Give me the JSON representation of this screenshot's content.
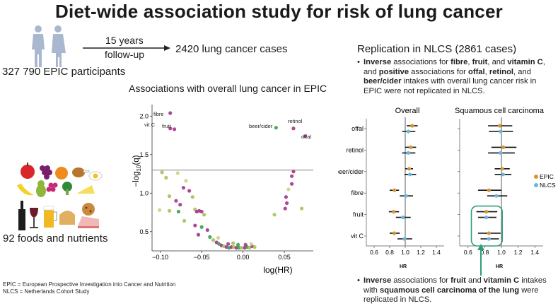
{
  "title": "Diet-wide association study for risk of lung cancer",
  "cohort": {
    "participants": "327 790 EPIC participants",
    "followup_years": "15 years",
    "followup_word": "follow-up",
    "cases": "2420 lung cancer cases",
    "foods": "92 foods and nutrients"
  },
  "volcano": {
    "title": "Associations with overall lung cancer in EPIC",
    "xlabel": "log(HR)",
    "ylabel_main": "−log",
    "ylabel_sub": "10",
    "ylabel_q": "(q)",
    "labels": [
      "fibre",
      "vit C",
      "fruit",
      "beer/cider",
      "retinol",
      "offal"
    ]
  },
  "replication": {
    "title": "Replication in NLCS (2861 cases)",
    "bullet1": {
      "p1_b": "Inverse",
      "p1": " associations for ",
      "p2_b": "fibre",
      "p3": ", ",
      "p4_b": "fruit",
      "p5": ", and ",
      "p6_b": "vitamin C",
      "p7": ",",
      "l2_a": "and ",
      "l2_b": "positive",
      "l2_c": " associations for ",
      "l2_d": "offal",
      "l2_e": ", ",
      "l2_f": "retinol",
      "l2_g": ", and",
      "l3_b": "beer/cider",
      "l3": " intakes with overall lung cancer risk in",
      "l4": "EPIC were not replicated in NLCS."
    },
    "bullet2": {
      "l1_b": "Inverse",
      "l1": " associations for ",
      "l1_c": "fruit",
      "l1_d": " and ",
      "l1_e": "vitamin C",
      "l1_f": " intakes",
      "l2": "with ",
      "l2_b": "squamous cell carcinoma of the lung",
      "l2_c": " were",
      "l3": "replicated in NLCS."
    }
  },
  "forest": {
    "panel_overall": "Overall",
    "panel_scc": "Squamous cell carcinoma",
    "axis_label": "HR",
    "ticks": [
      "0.6",
      "0.8",
      "1.0",
      "1.2",
      "1.4"
    ],
    "rows": [
      "offal",
      "retinol",
      "beer/cider",
      "fibre",
      "fruit",
      "vit C"
    ],
    "legend": [
      "EPIC",
      "NLCS"
    ],
    "colors": {
      "EPIC": "#d6952e",
      "NLCS": "#6bb6e0",
      "highlight": "#2e9e7a"
    }
  },
  "footnotes": {
    "epic": "EPIC = European Prospective Investigation into Cancer and Nutrition",
    "nlcs": "NLCS = Netherlands Cohort Study"
  },
  "chart_data": [
    {
      "type": "scatter",
      "title": "Associations with overall lung cancer in EPIC",
      "xlabel": "log(HR)",
      "ylabel": "−log10(q)",
      "xlim": [
        -0.11,
        0.085
      ],
      "ylim": [
        0.25,
        2.15
      ],
      "xticks": [
        -0.1,
        -0.05,
        0.0,
        0.05
      ],
      "yticks": [
        0.5,
        1.0,
        1.5,
        2.0
      ],
      "threshold_y": 1.3,
      "points": [
        {
          "x": -0.088,
          "y": 2.04,
          "c": "#a4338c"
        },
        {
          "x": -0.088,
          "y": 1.84,
          "c": "#a4338c"
        },
        {
          "x": -0.083,
          "y": 1.83,
          "c": "#a4338c"
        },
        {
          "x": 0.04,
          "y": 1.85,
          "c": "#37a04a"
        },
        {
          "x": 0.061,
          "y": 1.84,
          "c": "#a4338c"
        },
        {
          "x": 0.075,
          "y": 1.74,
          "c": "#a4338c"
        },
        {
          "x": -0.098,
          "y": 1.27,
          "c": "#a5c257"
        },
        {
          "x": -0.093,
          "y": 1.2,
          "c": "#a5c257"
        },
        {
          "x": -0.079,
          "y": 1.26,
          "c": "#cfcf8a"
        },
        {
          "x": -0.069,
          "y": 1.16,
          "c": "#cfcf8a"
        },
        {
          "x": -0.072,
          "y": 1.07,
          "c": "#a4338c"
        },
        {
          "x": -0.065,
          "y": 1.03,
          "c": "#a4338c"
        },
        {
          "x": -0.061,
          "y": 0.95,
          "c": "#a5c257"
        },
        {
          "x": -0.081,
          "y": 0.9,
          "c": "#a4338c"
        },
        {
          "x": -0.089,
          "y": 0.96,
          "c": "#a5c257"
        },
        {
          "x": -0.076,
          "y": 0.85,
          "c": "#a4338c"
        },
        {
          "x": -0.101,
          "y": 0.78,
          "c": "#cfcf8a"
        },
        {
          "x": -0.089,
          "y": 0.77,
          "c": "#a5c257"
        },
        {
          "x": -0.078,
          "y": 0.76,
          "c": "#37a04a"
        },
        {
          "x": -0.058,
          "y": 0.79,
          "c": "#a5c257"
        },
        {
          "x": -0.056,
          "y": 0.76,
          "c": "#a4338c"
        },
        {
          "x": -0.053,
          "y": 0.77,
          "c": "#a4338c"
        },
        {
          "x": -0.05,
          "y": 0.76,
          "c": "#a4338c"
        },
        {
          "x": -0.047,
          "y": 0.72,
          "c": "#a5c257"
        },
        {
          "x": -0.071,
          "y": 0.64,
          "c": "#a5c257"
        },
        {
          "x": -0.058,
          "y": 0.58,
          "c": "#a4338c"
        },
        {
          "x": -0.05,
          "y": 0.56,
          "c": "#37a04a"
        },
        {
          "x": -0.043,
          "y": 0.52,
          "c": "#a4338c"
        },
        {
          "x": -0.054,
          "y": 0.46,
          "c": "#a4338c"
        },
        {
          "x": -0.04,
          "y": 0.43,
          "c": "#37a04a"
        },
        {
          "x": -0.036,
          "y": 0.39,
          "c": "#a5c257"
        },
        {
          "x": -0.032,
          "y": 0.36,
          "c": "#a4338c"
        },
        {
          "x": -0.029,
          "y": 0.34,
          "c": "#37a04a"
        },
        {
          "x": -0.026,
          "y": 0.32,
          "c": "#a4338c"
        },
        {
          "x": -0.023,
          "y": 0.31,
          "c": "#a5c257"
        },
        {
          "x": -0.02,
          "y": 0.3,
          "c": "#a4338c"
        },
        {
          "x": -0.017,
          "y": 0.29,
          "c": "#37a04a"
        },
        {
          "x": -0.014,
          "y": 0.3,
          "c": "#a4338c"
        },
        {
          "x": -0.011,
          "y": 0.3,
          "c": "#a5c257"
        },
        {
          "x": -0.008,
          "y": 0.29,
          "c": "#a4338c"
        },
        {
          "x": -0.005,
          "y": 0.29,
          "c": "#37a04a"
        },
        {
          "x": -0.002,
          "y": 0.29,
          "c": "#a5c257"
        },
        {
          "x": 0.002,
          "y": 0.29,
          "c": "#a4338c"
        },
        {
          "x": 0.005,
          "y": 0.3,
          "c": "#37a04a"
        },
        {
          "x": 0.008,
          "y": 0.29,
          "c": "#a5c257"
        },
        {
          "x": 0.011,
          "y": 0.31,
          "c": "#a4338c"
        },
        {
          "x": 0.014,
          "y": 0.3,
          "c": "#a5c257"
        },
        {
          "x": -0.018,
          "y": 0.34,
          "c": "#a4338c"
        },
        {
          "x": -0.012,
          "y": 0.35,
          "c": "#a5c257"
        },
        {
          "x": -0.006,
          "y": 0.33,
          "c": "#37a04a"
        },
        {
          "x": 0.003,
          "y": 0.33,
          "c": "#a4338c"
        },
        {
          "x": 0.01,
          "y": 0.34,
          "c": "#cfcf8a"
        },
        {
          "x": -0.03,
          "y": 0.42,
          "c": "#cfcf8a"
        },
        {
          "x": 0.038,
          "y": 0.72,
          "c": "#a5c257"
        },
        {
          "x": 0.051,
          "y": 0.8,
          "c": "#a4338c"
        },
        {
          "x": 0.053,
          "y": 0.87,
          "c": "#a4338c"
        },
        {
          "x": 0.052,
          "y": 0.95,
          "c": "#a4338c"
        },
        {
          "x": 0.055,
          "y": 1.05,
          "c": "#cfcf8a"
        },
        {
          "x": 0.059,
          "y": 1.12,
          "c": "#a4338c"
        },
        {
          "x": 0.059,
          "y": 1.22,
          "c": "#a4338c"
        },
        {
          "x": 0.061,
          "y": 1.28,
          "c": "#a4338c"
        },
        {
          "x": 0.071,
          "y": 0.8,
          "c": "#a5c257"
        }
      ]
    },
    {
      "type": "forest",
      "title": "Overall",
      "xlabel": "HR",
      "xlim": [
        0.5,
        1.5
      ],
      "categories": [
        "offal",
        "retinol",
        "beer/cider",
        "fibre",
        "fruit",
        "vit C"
      ],
      "series": [
        {
          "name": "EPIC",
          "values": [
            1.09,
            1.07,
            1.05,
            0.86,
            0.85,
            0.86
          ],
          "lo": [
            1.02,
            1.0,
            1.0,
            0.8,
            0.79,
            0.8
          ],
          "hi": [
            1.16,
            1.14,
            1.1,
            0.92,
            0.92,
            0.93
          ]
        },
        {
          "name": "NLCS",
          "values": [
            1.04,
            1.04,
            1.06,
            1.01,
            0.97,
            0.99
          ],
          "lo": [
            0.96,
            0.96,
            0.99,
            0.93,
            0.88,
            0.9
          ],
          "hi": [
            1.13,
            1.13,
            1.14,
            1.1,
            1.07,
            1.09
          ]
        }
      ]
    },
    {
      "type": "forest",
      "title": "Squamous cell carcinoma",
      "xlabel": "HR",
      "xlim": [
        0.5,
        1.5
      ],
      "categories": [
        "offal",
        "retinol",
        "beer/cider",
        "fibre",
        "fruit",
        "vit C"
      ],
      "series": [
        {
          "name": "EPIC",
          "values": [
            0.98,
            1.02,
            1.01,
            0.85,
            0.82,
            0.85
          ],
          "lo": [
            0.84,
            0.88,
            0.92,
            0.72,
            0.7,
            0.72
          ],
          "hi": [
            1.13,
            1.18,
            1.1,
            1.0,
            0.95,
            0.99
          ]
        },
        {
          "name": "NLCS",
          "values": [
            0.99,
            0.99,
            1.02,
            0.94,
            0.82,
            0.85
          ],
          "lo": [
            0.85,
            0.84,
            0.92,
            0.83,
            0.72,
            0.75
          ],
          "hi": [
            1.14,
            1.16,
            1.12,
            1.07,
            0.94,
            0.97
          ]
        }
      ]
    }
  ]
}
